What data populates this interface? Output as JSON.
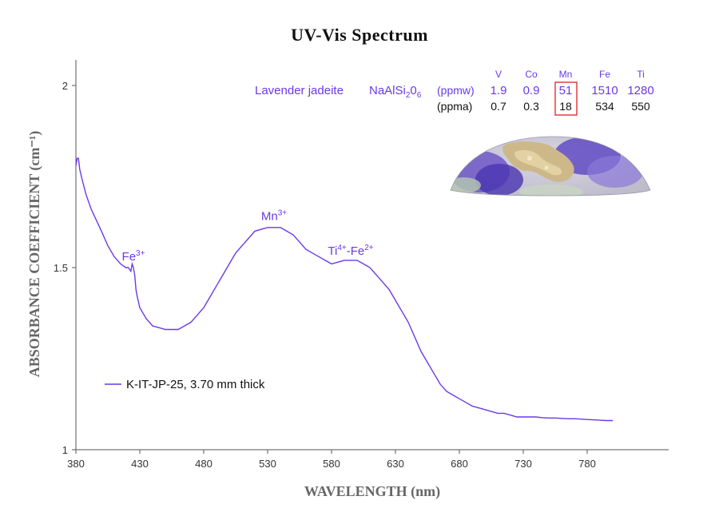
{
  "chart_data": {
    "type": "line",
    "title": "UV-Vis Spectrum",
    "xlabel": "WAVELENGTH (nm)",
    "ylabel": "ABSORBANCE COEFFICIENT (cm⁻¹)",
    "xlim": [
      380,
      800
    ],
    "ylim": [
      1,
      2.07
    ],
    "x_ticks": [
      380,
      430,
      480,
      530,
      580,
      630,
      680,
      730,
      780
    ],
    "y_ticks": [
      1,
      1.5,
      2
    ],
    "grid": false,
    "legend_position": "lower-left",
    "series": [
      {
        "name": "K-IT-JP-25, 3.70 mm thick",
        "color": "#6a39e8",
        "points": [
          [
            380,
            1.78
          ],
          [
            381,
            1.8
          ],
          [
            382,
            1.8
          ],
          [
            383,
            1.77
          ],
          [
            385,
            1.74
          ],
          [
            388,
            1.7
          ],
          [
            392,
            1.66
          ],
          [
            396,
            1.63
          ],
          [
            400,
            1.6
          ],
          [
            405,
            1.56
          ],
          [
            410,
            1.53
          ],
          [
            415,
            1.51
          ],
          [
            419,
            1.5
          ],
          [
            421,
            1.5
          ],
          [
            423,
            1.49
          ],
          [
            424,
            1.51
          ],
          [
            425,
            1.5
          ],
          [
            426,
            1.48
          ],
          [
            427,
            1.44
          ],
          [
            428,
            1.42
          ],
          [
            430,
            1.39
          ],
          [
            435,
            1.36
          ],
          [
            440,
            1.34
          ],
          [
            445,
            1.335
          ],
          [
            450,
            1.33
          ],
          [
            455,
            1.33
          ],
          [
            460,
            1.33
          ],
          [
            465,
            1.34
          ],
          [
            470,
            1.35
          ],
          [
            475,
            1.37
          ],
          [
            480,
            1.39
          ],
          [
            485,
            1.42
          ],
          [
            490,
            1.45
          ],
          [
            495,
            1.48
          ],
          [
            500,
            1.51
          ],
          [
            505,
            1.54
          ],
          [
            510,
            1.56
          ],
          [
            515,
            1.58
          ],
          [
            520,
            1.6
          ],
          [
            525,
            1.605
          ],
          [
            530,
            1.61
          ],
          [
            535,
            1.61
          ],
          [
            540,
            1.61
          ],
          [
            545,
            1.6
          ],
          [
            550,
            1.59
          ],
          [
            555,
            1.57
          ],
          [
            560,
            1.55
          ],
          [
            565,
            1.54
          ],
          [
            570,
            1.53
          ],
          [
            575,
            1.52
          ],
          [
            580,
            1.51
          ],
          [
            585,
            1.515
          ],
          [
            590,
            1.52
          ],
          [
            595,
            1.52
          ],
          [
            600,
            1.52
          ],
          [
            605,
            1.51
          ],
          [
            610,
            1.5
          ],
          [
            615,
            1.48
          ],
          [
            620,
            1.46
          ],
          [
            625,
            1.44
          ],
          [
            630,
            1.41
          ],
          [
            635,
            1.38
          ],
          [
            640,
            1.35
          ],
          [
            645,
            1.31
          ],
          [
            650,
            1.27
          ],
          [
            655,
            1.24
          ],
          [
            660,
            1.21
          ],
          [
            665,
            1.18
          ],
          [
            670,
            1.16
          ],
          [
            675,
            1.15
          ],
          [
            680,
            1.14
          ],
          [
            685,
            1.13
          ],
          [
            690,
            1.12
          ],
          [
            695,
            1.115
          ],
          [
            700,
            1.11
          ],
          [
            705,
            1.105
          ],
          [
            710,
            1.1
          ],
          [
            715,
            1.1
          ],
          [
            720,
            1.095
          ],
          [
            725,
            1.09
          ],
          [
            730,
            1.09
          ],
          [
            735,
            1.09
          ],
          [
            740,
            1.09
          ],
          [
            745,
            1.088
          ],
          [
            750,
            1.087
          ],
          [
            755,
            1.087
          ],
          [
            760,
            1.086
          ],
          [
            765,
            1.085
          ],
          [
            770,
            1.085
          ],
          [
            775,
            1.084
          ],
          [
            780,
            1.083
          ],
          [
            785,
            1.082
          ],
          [
            790,
            1.081
          ],
          [
            795,
            1.08
          ],
          [
            800,
            1.08
          ]
        ]
      }
    ],
    "annotations": [
      {
        "base": "Fe",
        "sup": "3+",
        "x": 425,
        "y": 1.52
      },
      {
        "base": "Mn",
        "sup": "3+",
        "x": 535,
        "y": 1.63
      },
      {
        "base": "Ti",
        "sup": "4+",
        "mid": "-Fe",
        "sup2": "2+",
        "x": 595,
        "y": 1.535
      }
    ]
  },
  "composition_table": {
    "elements": [
      "V",
      "Co",
      "Mn",
      "Fe",
      "Ti"
    ],
    "sample_label": "Lavender jadeite",
    "formula_parts": [
      "NaAlSi",
      "2",
      "0",
      "6"
    ],
    "rows": [
      {
        "unit": "(ppmw)",
        "values": [
          "1.9",
          "0.9",
          "51",
          "1510",
          "1280"
        ]
      },
      {
        "unit": "(ppma)",
        "values": [
          "0.7",
          "0.3",
          "18",
          "534",
          "550"
        ]
      }
    ],
    "highlight_column": "Mn",
    "highlight_color": "#e02020"
  },
  "colors": {
    "spectrum": "#6a39e8",
    "axis": "#555555",
    "text": "#111111"
  },
  "icons": [
    "jadeite-sample-photo"
  ]
}
